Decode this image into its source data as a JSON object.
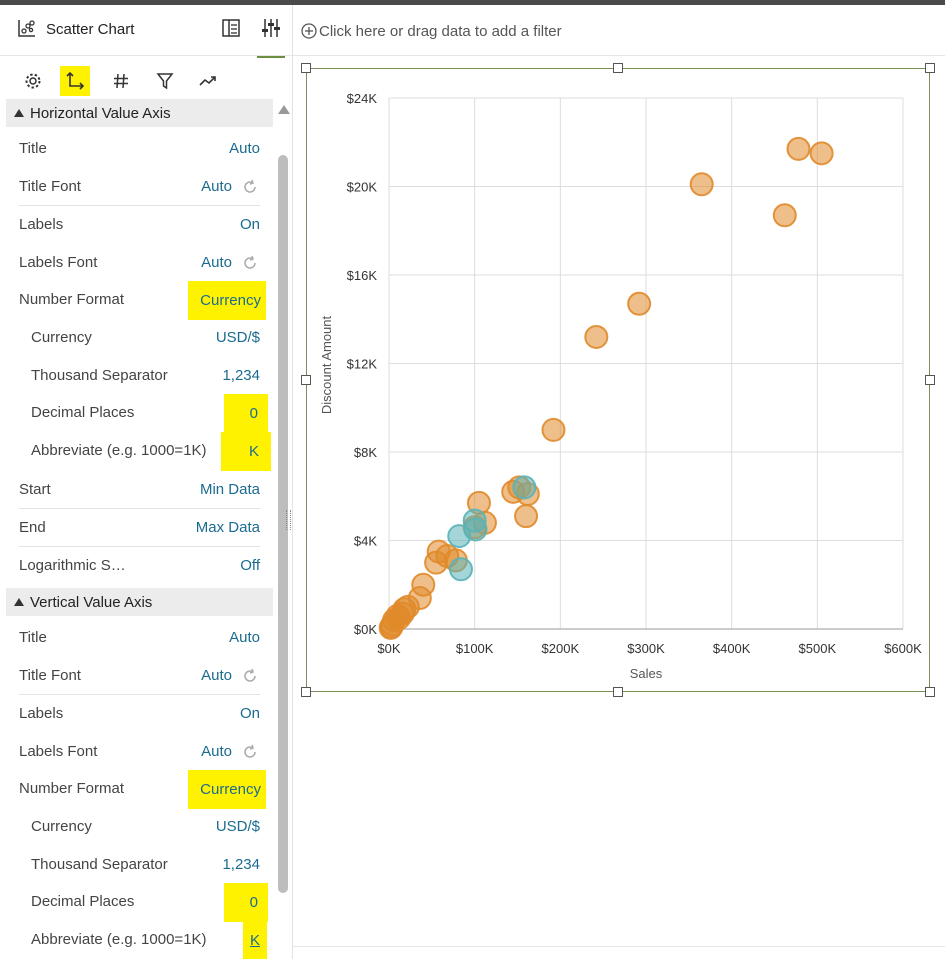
{
  "panel": {
    "title": "Scatter Chart",
    "icons": {
      "chart": "scatter-chart-icon",
      "grammar": "grammar-panel-icon",
      "properties": "properties-sliders-icon"
    },
    "tabs": [
      "gear-icon",
      "axis-icon",
      "hash-icon",
      "filter-icon",
      "analytics-icon"
    ]
  },
  "horizontal_axis": {
    "heading": "Horizontal Value Axis",
    "rows": [
      {
        "label": "Title",
        "value": "Auto"
      },
      {
        "label": "Title Font",
        "value": "Auto"
      },
      {
        "label": "Labels",
        "value": "On"
      },
      {
        "label": "Labels Font",
        "value": "Auto"
      },
      {
        "label": "Number Format",
        "value": "Currency"
      },
      {
        "label": "Currency",
        "value": "USD/$"
      },
      {
        "label": "Thousand Separator",
        "value": "1,234"
      },
      {
        "label": "Decimal Places",
        "value": "0"
      },
      {
        "label": "Abbreviate (e.g. 1000=1K)",
        "value": "K"
      },
      {
        "label": "Start",
        "value": "Min Data"
      },
      {
        "label": "End",
        "value": "Max Data"
      },
      {
        "label": "Logarithmic S…",
        "value": "Off"
      }
    ]
  },
  "vertical_axis": {
    "heading": "Vertical Value Axis",
    "rows": [
      {
        "label": "Title",
        "value": "Auto"
      },
      {
        "label": "Title Font",
        "value": "Auto"
      },
      {
        "label": "Labels",
        "value": "On"
      },
      {
        "label": "Labels Font",
        "value": "Auto"
      },
      {
        "label": "Number Format",
        "value": "Currency"
      },
      {
        "label": "Currency",
        "value": "USD/$"
      },
      {
        "label": "Thousand Separator",
        "value": "1,234"
      },
      {
        "label": "Decimal Places",
        "value": "0"
      },
      {
        "label": "Abbreviate (e.g. 1000=1K)",
        "value": "K"
      }
    ]
  },
  "filterbar": {
    "text": "Click here or drag data to add a filter"
  },
  "colors": {
    "highlight": "#fff200",
    "link": "#1b6b8f",
    "accent": "#4b6b2a",
    "orange": "#e08a2a",
    "teal": "#5ab3b8"
  },
  "chart_data": {
    "type": "scatter",
    "xlabel": "Sales",
    "ylabel": "Discount Amount",
    "xlim": [
      0,
      600000
    ],
    "ylim": [
      0,
      24000
    ],
    "x_ticks": [
      "$0K",
      "$100K",
      "$200K",
      "$300K",
      "$400K",
      "$500K",
      "$600K"
    ],
    "y_ticks": [
      "$0K",
      "$4K",
      "$8K",
      "$12K",
      "$16K",
      "$20K",
      "$24K"
    ],
    "grid": true,
    "series": [
      {
        "color": "#e08a2a",
        "points": [
          [
            478000,
            21700
          ],
          [
            505000,
            21500
          ],
          [
            365000,
            20100
          ],
          [
            462000,
            18700
          ],
          [
            292000,
            14700
          ],
          [
            242000,
            13200
          ],
          [
            192000,
            9000
          ],
          [
            105000,
            5700
          ],
          [
            112000,
            4800
          ],
          [
            145000,
            6200
          ],
          [
            152000,
            6400
          ],
          [
            162000,
            6100
          ],
          [
            160000,
            5100
          ],
          [
            100000,
            4600
          ],
          [
            58000,
            3500
          ],
          [
            68000,
            3300
          ],
          [
            55000,
            3000
          ],
          [
            78000,
            3100
          ],
          [
            40000,
            2000
          ],
          [
            36000,
            1400
          ],
          [
            22000,
            1000
          ],
          [
            16000,
            700
          ],
          [
            10000,
            600
          ],
          [
            6000,
            400
          ],
          [
            3000,
            100
          ],
          [
            2000,
            50
          ],
          [
            18000,
            900
          ],
          [
            12000,
            500
          ],
          [
            4000,
            200
          ]
        ]
      },
      {
        "color": "#5ab3b8",
        "points": [
          [
            82000,
            4200
          ],
          [
            84000,
            2700
          ],
          [
            100000,
            4900
          ],
          [
            101000,
            4500
          ],
          [
            158000,
            6400
          ]
        ]
      }
    ]
  }
}
